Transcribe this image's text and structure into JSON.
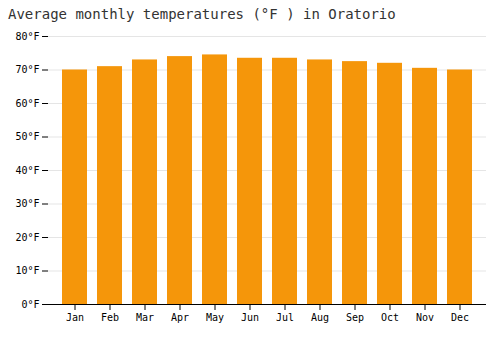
{
  "chart_data": {
    "type": "bar",
    "title": "Average monthly temperatures (°F ) in Oratorio",
    "categories": [
      "Jan",
      "Feb",
      "Mar",
      "Apr",
      "May",
      "Jun",
      "Jul",
      "Aug",
      "Sep",
      "Oct",
      "Nov",
      "Dec"
    ],
    "values": [
      70.0,
      71.0,
      73.0,
      74.0,
      74.5,
      73.5,
      73.5,
      73.0,
      72.5,
      72.0,
      70.5,
      70.0
    ],
    "color": "#F5960A",
    "ylim": [
      0,
      80
    ],
    "yticks": [
      {
        "value": 0,
        "label": "0°F"
      },
      {
        "value": 10,
        "label": "10°F"
      },
      {
        "value": 20,
        "label": "20°F"
      },
      {
        "value": 30,
        "label": "30°F"
      },
      {
        "value": 40,
        "label": "40°F"
      },
      {
        "value": 50,
        "label": "50°F"
      },
      {
        "value": 60,
        "label": "60°F"
      },
      {
        "value": 70,
        "label": "70°F"
      },
      {
        "value": 80,
        "label": "80°F"
      }
    ],
    "grid": true
  }
}
